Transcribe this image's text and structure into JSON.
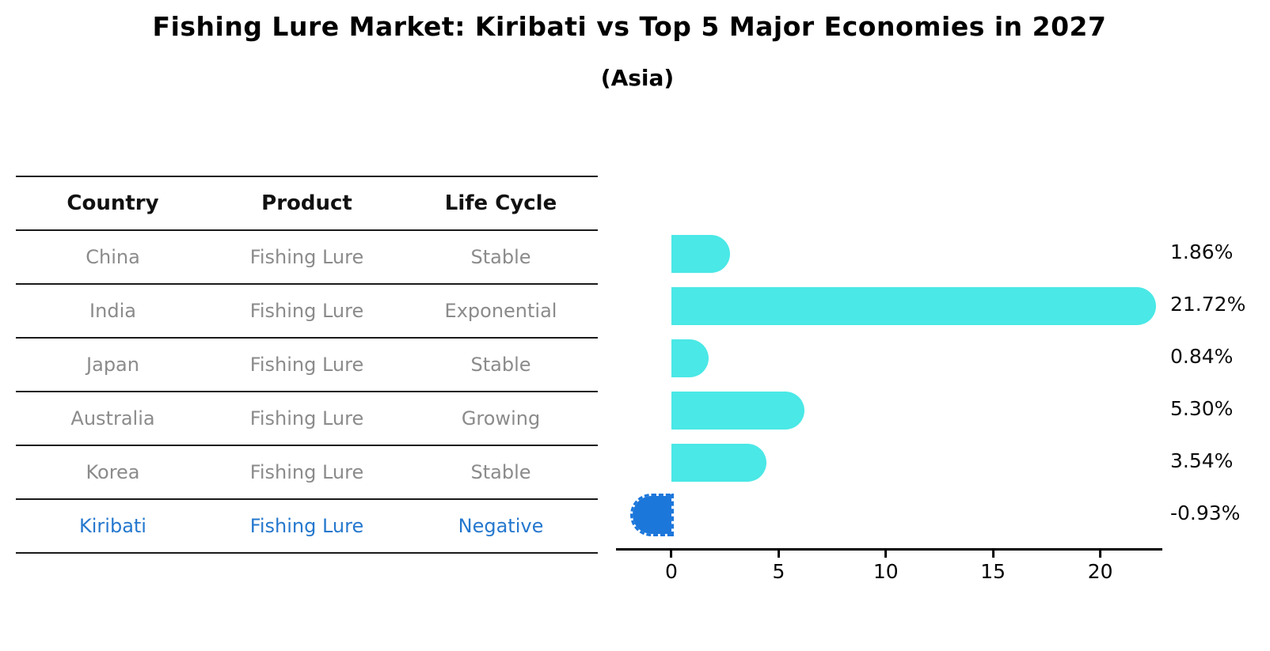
{
  "chart_data": {
    "type": "bar",
    "orientation": "horizontal",
    "title": "Fishing Lure Market: Kiribati vs Top 5 Major Economies in 2027",
    "subtitle": "(Asia)",
    "categories": [
      "China",
      "India",
      "Japan",
      "Australia",
      "Korea",
      "Kiribati"
    ],
    "values": [
      1.86,
      21.72,
      0.84,
      5.3,
      3.54,
      -0.93
    ],
    "value_labels": [
      "1.86%",
      "21.72%",
      "0.84%",
      "5.30%",
      "3.54%",
      "-0.93%"
    ],
    "xticks": [
      "0",
      "5",
      "10",
      "15",
      "20"
    ],
    "xtick_values": [
      0,
      5,
      10,
      15,
      20
    ],
    "xlim": [
      -2.6,
      22.9
    ],
    "xlabel": "",
    "ylabel": "",
    "grid": false,
    "legend": false,
    "bar_color": "#4ae8e6",
    "highlight_color": "#1c77db",
    "highlight_index": 5,
    "highlight_style": "dashed-outline"
  },
  "table": {
    "headers": [
      "Country",
      "Product",
      "Life Cycle"
    ],
    "rows": [
      {
        "country": "China",
        "product": "Fishing Lure",
        "life_cycle": "Stable"
      },
      {
        "country": "India",
        "product": "Fishing Lure",
        "life_cycle": "Exponential"
      },
      {
        "country": "Japan",
        "product": "Fishing Lure",
        "life_cycle": "Stable"
      },
      {
        "country": "Australia",
        "product": "Fishing Lure",
        "life_cycle": "Growing"
      },
      {
        "country": "Korea",
        "product": "Fishing Lure",
        "life_cycle": "Stable"
      },
      {
        "country": "Kiribati",
        "product": "Fishing Lure",
        "life_cycle": "Negative"
      }
    ],
    "highlight_row_color": "#2578ce",
    "text_color": "#8b8b8b"
  }
}
